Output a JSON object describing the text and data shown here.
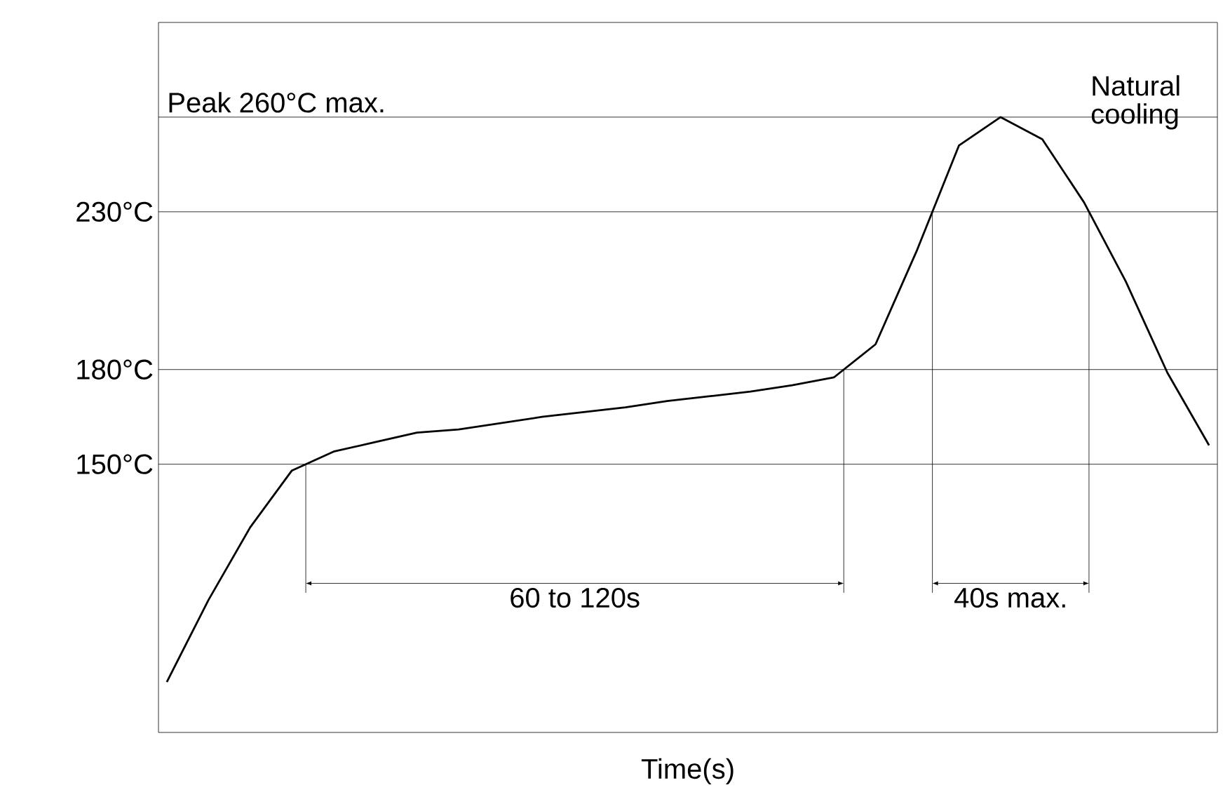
{
  "chart_data": {
    "type": "line",
    "xlabel": "Time(s)",
    "categories": [
      null,
      null,
      null,
      null,
      null,
      null,
      null,
      null,
      null,
      null,
      null,
      null,
      null,
      null,
      null,
      null,
      null,
      null,
      null,
      null,
      null,
      null,
      null,
      null,
      null,
      null
    ],
    "values": [
      81,
      107,
      130,
      148,
      154,
      157,
      160,
      161,
      163,
      165,
      166.5,
      168,
      170,
      171.5,
      173,
      175,
      177.5,
      188,
      218,
      251,
      260,
      253,
      233,
      208,
      179,
      156
    ],
    "color": "#000000",
    "ylim": [
      65,
      290
    ],
    "yticks": [
      {
        "value": 150,
        "label": "150°C"
      },
      {
        "value": 180,
        "label": "180°C"
      },
      {
        "value": 230,
        "label": "230°C"
      }
    ],
    "ref_lines": [
      {
        "axis": "y",
        "value": 260,
        "label": "Peak 260°C max."
      },
      {
        "axis": "y",
        "value": 230
      },
      {
        "axis": "y",
        "value": 180
      },
      {
        "axis": "y",
        "value": 150
      }
    ],
    "annotations": [
      "60 to 120s",
      "40s max.",
      "Natural cooling"
    ],
    "tick_labels": "y",
    "grid": false,
    "marker": "none",
    "line_style": "solid"
  }
}
